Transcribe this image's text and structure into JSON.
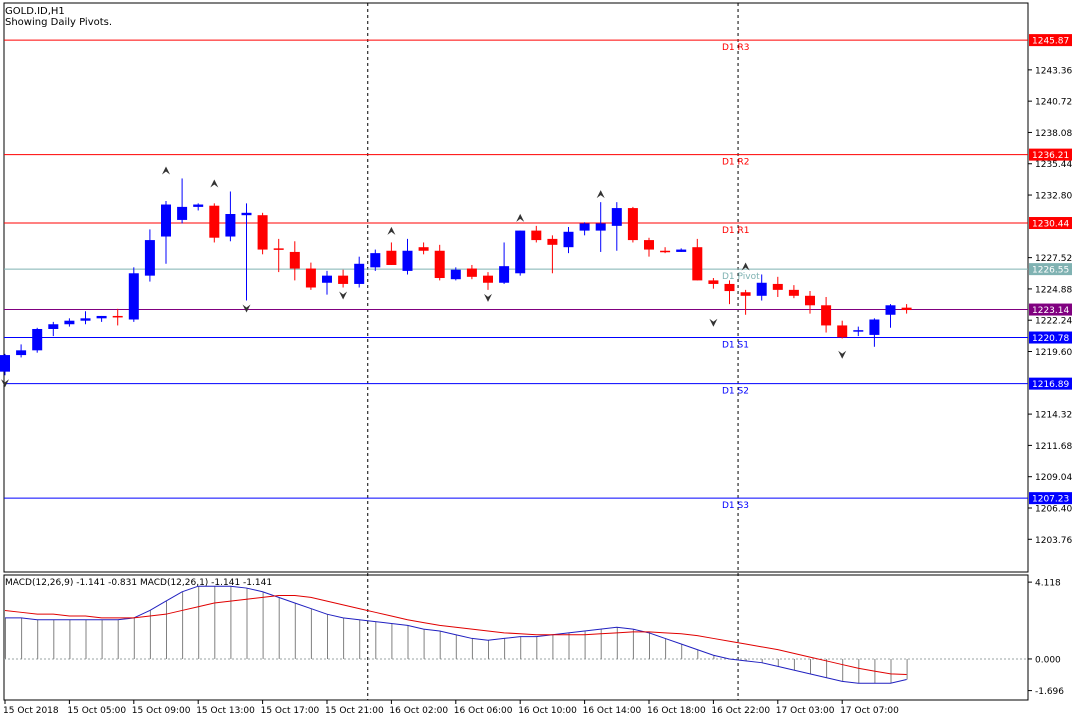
{
  "chart_data": [
    {
      "type": "candlestick",
      "symbol_label": "GOLD.ID,H1",
      "subtitle": "Showing Daily Pivots.",
      "ylim": [
        1201.0,
        1249.0
      ],
      "y_ticks": [
        "1243.36",
        "1240.72",
        "1238.08",
        "1235.44",
        "1232.80",
        "1227.52",
        "1224.88",
        "1222.24",
        "1219.60",
        "1214.32",
        "1211.68",
        "1209.04",
        "1206.40",
        "1203.76"
      ],
      "x_ticks": [
        {
          "bar": 0,
          "label": "15 Oct 2018"
        },
        {
          "bar": 4,
          "label": "15 Oct 05:00"
        },
        {
          "bar": 8,
          "label": "15 Oct 09:00"
        },
        {
          "bar": 12,
          "label": "15 Oct 13:00"
        },
        {
          "bar": 16,
          "label": "15 Oct 17:00"
        },
        {
          "bar": 20,
          "label": "15 Oct 21:00"
        },
        {
          "bar": 24,
          "label": "16 Oct 02:00"
        },
        {
          "bar": 28,
          "label": "16 Oct 06:00"
        },
        {
          "bar": 32,
          "label": "16 Oct 10:00"
        },
        {
          "bar": 36,
          "label": "16 Oct 14:00"
        },
        {
          "bar": 40,
          "label": "16 Oct 18:00"
        },
        {
          "bar": 44,
          "label": "16 Oct 22:00"
        },
        {
          "bar": 48,
          "label": "17 Oct 03:00"
        },
        {
          "bar": 52,
          "label": "17 Oct 07:00"
        }
      ],
      "day_separators_after_bar": [
        22.5,
        45.5
      ],
      "candles": [
        [
          1217.9,
          1219.4,
          1217.6,
          1219.3
        ],
        [
          1219.3,
          1220.2,
          1219.1,
          1219.7
        ],
        [
          1219.7,
          1221.6,
          1219.5,
          1221.5
        ],
        [
          1221.5,
          1222.1,
          1220.9,
          1221.9
        ],
        [
          1221.9,
          1222.4,
          1221.7,
          1222.2
        ],
        [
          1222.2,
          1223.0,
          1221.9,
          1222.4
        ],
        [
          1222.4,
          1222.6,
          1222.1,
          1222.6
        ],
        [
          1222.6,
          1223.2,
          1221.8,
          1222.5
        ],
        [
          1222.3,
          1226.7,
          1222.1,
          1226.2
        ],
        [
          1226.0,
          1229.9,
          1225.5,
          1229.0
        ],
        [
          1229.3,
          1232.3,
          1227.0,
          1232.0
        ],
        [
          1230.7,
          1234.2,
          1230.4,
          1231.8
        ],
        [
          1231.8,
          1232.1,
          1231.5,
          1232.0
        ],
        [
          1231.9,
          1232.1,
          1228.8,
          1229.2
        ],
        [
          1229.3,
          1233.1,
          1228.9,
          1231.2
        ],
        [
          1231.1,
          1232.1,
          1223.9,
          1231.3
        ],
        [
          1231.1,
          1231.3,
          1227.8,
          1228.2
        ],
        [
          1228.3,
          1229.1,
          1226.3,
          1228.2
        ],
        [
          1228.0,
          1228.9,
          1225.6,
          1226.6
        ],
        [
          1226.6,
          1227.1,
          1224.8,
          1225.0
        ],
        [
          1225.4,
          1226.4,
          1224.4,
          1226.0
        ],
        [
          1226.0,
          1226.5,
          1225.0,
          1225.3
        ],
        [
          1225.3,
          1227.6,
          1225.0,
          1227.0
        ],
        [
          1226.7,
          1228.2,
          1226.4,
          1227.9
        ],
        [
          1228.1,
          1228.8,
          1226.9,
          1226.9
        ],
        [
          1226.4,
          1229.1,
          1226.1,
          1228.1
        ],
        [
          1228.4,
          1228.8,
          1227.8,
          1228.1
        ],
        [
          1228.1,
          1228.6,
          1225.6,
          1225.8
        ],
        [
          1225.7,
          1226.7,
          1225.6,
          1226.5
        ],
        [
          1226.6,
          1226.9,
          1225.7,
          1225.9
        ],
        [
          1226.0,
          1226.3,
          1224.8,
          1225.4
        ],
        [
          1225.4,
          1228.8,
          1225.3,
          1226.8
        ],
        [
          1226.2,
          1229.8,
          1226.0,
          1229.8
        ],
        [
          1229.8,
          1230.2,
          1228.8,
          1229.0
        ],
        [
          1229.1,
          1229.4,
          1226.2,
          1228.6
        ],
        [
          1228.4,
          1230.1,
          1227.9,
          1229.7
        ],
        [
          1229.8,
          1230.5,
          1229.4,
          1230.4
        ],
        [
          1229.8,
          1232.2,
          1228.0,
          1230.4
        ],
        [
          1230.2,
          1232.2,
          1228.1,
          1231.7
        ],
        [
          1231.7,
          1231.8,
          1228.8,
          1229.0
        ],
        [
          1229.0,
          1229.2,
          1227.6,
          1228.2
        ],
        [
          1228.1,
          1228.4,
          1227.9,
          1228.0
        ],
        [
          1228.0,
          1228.3,
          1228.0,
          1228.2
        ],
        [
          1228.4,
          1229.1,
          1225.6,
          1225.6
        ],
        [
          1225.6,
          1225.8,
          1224.9,
          1225.3
        ],
        [
          1225.3,
          1225.6,
          1223.6,
          1224.7
        ],
        [
          1224.6,
          1224.8,
          1222.7,
          1224.3
        ],
        [
          1224.3,
          1226.1,
          1223.9,
          1225.4
        ],
        [
          1225.3,
          1225.9,
          1224.2,
          1224.8
        ],
        [
          1224.8,
          1225.2,
          1224.1,
          1224.3
        ],
        [
          1224.3,
          1224.7,
          1222.8,
          1223.5
        ],
        [
          1223.5,
          1224.2,
          1221.2,
          1221.8
        ],
        [
          1221.8,
          1222.2,
          1220.7,
          1220.8
        ],
        [
          1221.3,
          1221.7,
          1220.9,
          1221.4
        ],
        [
          1221.0,
          1222.4,
          1220.0,
          1222.3
        ],
        [
          1222.7,
          1223.6,
          1221.6,
          1223.5
        ],
        [
          1223.3,
          1223.6,
          1222.8,
          1223.1
        ]
      ],
      "fractals": {
        "up": [
          [
            10,
            1234.2
          ],
          [
            13,
            1233.1
          ],
          [
            24,
            1229.1
          ],
          [
            32,
            1230.2
          ],
          [
            37,
            1232.2
          ],
          [
            46,
            1226.1
          ]
        ],
        "down": [
          [
            0,
            1217.6
          ],
          [
            15,
            1223.9
          ],
          [
            21,
            1225.0
          ],
          [
            30,
            1224.8
          ],
          [
            44,
            1222.7
          ],
          [
            52,
            1220.0
          ]
        ]
      },
      "pivot_levels": [
        {
          "name": "D1 R3",
          "value": "1245.87",
          "color": "#ff0000"
        },
        {
          "name": "D1 R2",
          "value": "1236.21",
          "color": "#ff0000"
        },
        {
          "name": "D1 R1",
          "value": "1230.44",
          "color": "#ff0000"
        },
        {
          "name": "D1 Pivot",
          "value": "1226.55",
          "color": "#7fb2b2"
        },
        {
          "name": "D1 S1",
          "value": "1220.78",
          "color": "#0000ff"
        },
        {
          "name": "D1 S2",
          "value": "1216.89",
          "color": "#0000ff"
        },
        {
          "name": "D1 S3",
          "value": "1207.23",
          "color": "#0000ff"
        }
      ],
      "current_price": {
        "value": "1223.14",
        "color": "#800080"
      },
      "colors": {
        "bull": "#0000ff",
        "bear": "#ff0000",
        "grid": "#000000"
      }
    },
    {
      "type": "line",
      "label": "MACD(12,26,9) -1.141 -0.831 MACD(12,26,1) -1.141 -1.141",
      "ylim": [
        -2.2,
        4.5
      ],
      "y_ticks": [
        "4.118",
        "0.000",
        "-1.696"
      ],
      "histogram": [
        2.2,
        2.2,
        2.1,
        2.1,
        2.1,
        2.1,
        2.1,
        2.1,
        2.2,
        2.6,
        3.1,
        3.6,
        3.9,
        3.9,
        3.9,
        3.8,
        3.6,
        3.3,
        3.0,
        2.7,
        2.4,
        2.2,
        2.1,
        2.0,
        1.9,
        1.8,
        1.6,
        1.5,
        1.3,
        1.1,
        1.0,
        1.1,
        1.2,
        1.2,
        1.3,
        1.4,
        1.5,
        1.6,
        1.7,
        1.6,
        1.4,
        1.1,
        0.8,
        0.5,
        0.2,
        0.0,
        -0.1,
        -0.2,
        -0.4,
        -0.6,
        -0.8,
        -1.0,
        -1.2,
        -1.3,
        -1.3,
        -1.3,
        -1.1
      ],
      "signal": [
        2.6,
        2.5,
        2.4,
        2.4,
        2.3,
        2.3,
        2.2,
        2.2,
        2.2,
        2.3,
        2.4,
        2.6,
        2.8,
        3.0,
        3.1,
        3.2,
        3.3,
        3.4,
        3.4,
        3.3,
        3.1,
        2.9,
        2.7,
        2.5,
        2.3,
        2.1,
        1.95,
        1.8,
        1.7,
        1.6,
        1.5,
        1.4,
        1.35,
        1.3,
        1.3,
        1.3,
        1.3,
        1.35,
        1.4,
        1.45,
        1.45,
        1.4,
        1.35,
        1.25,
        1.1,
        0.95,
        0.8,
        0.65,
        0.5,
        0.3,
        0.1,
        -0.1,
        -0.3,
        -0.5,
        -0.65,
        -0.8,
        -0.83
      ],
      "colors": {
        "macd": "#2020c0",
        "signal": "#e00000",
        "bars": "#808080"
      }
    }
  ]
}
